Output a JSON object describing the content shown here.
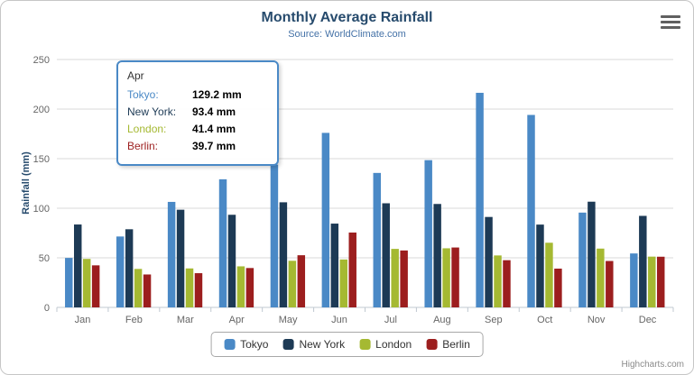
{
  "header": {
    "title": "Monthly Average Rainfall",
    "subtitle": "Source: WorldClimate.com"
  },
  "credits": "Highcharts.com",
  "chart_data": {
    "type": "bar",
    "title": "Monthly Average Rainfall",
    "subtitle": "Source: WorldClimate.com",
    "categories": [
      "Jan",
      "Feb",
      "Mar",
      "Apr",
      "May",
      "Jun",
      "Jul",
      "Aug",
      "Sep",
      "Oct",
      "Nov",
      "Dec"
    ],
    "series": [
      {
        "name": "Tokyo",
        "color": "#4a89c6",
        "values": [
          49.9,
          71.5,
          106.4,
          129.2,
          144.0,
          176.0,
          135.6,
          148.5,
          216.4,
          194.1,
          95.6,
          54.4
        ]
      },
      {
        "name": "New York",
        "color": "#1d3a55",
        "values": [
          83.6,
          78.8,
          98.5,
          93.4,
          106.0,
          84.5,
          105.0,
          104.3,
          91.2,
          83.5,
          106.6,
          92.3
        ]
      },
      {
        "name": "London",
        "color": "#a5b932",
        "values": [
          48.9,
          38.8,
          39.3,
          41.4,
          47.0,
          48.3,
          59.0,
          59.6,
          52.4,
          65.2,
          59.3,
          51.2
        ]
      },
      {
        "name": "Berlin",
        "color": "#9c1e1e",
        "values": [
          42.4,
          33.2,
          34.5,
          39.7,
          52.6,
          75.5,
          57.4,
          60.4,
          47.6,
          39.1,
          46.8,
          51.1
        ]
      }
    ],
    "xlabel": "",
    "ylabel": "Rainfall (mm)",
    "ylim": [
      0,
      250
    ],
    "yticks": [
      0,
      50,
      100,
      150,
      200,
      250
    ],
    "grid": true,
    "legend_position": "bottom"
  },
  "tooltip": {
    "header": "Apr",
    "rows": [
      {
        "label": "Tokyo:",
        "value": "129.2 mm"
      },
      {
        "label": "New York:",
        "value": "93.4 mm"
      },
      {
        "label": "London:",
        "value": "41.4 mm"
      },
      {
        "label": "Berlin:",
        "value": "39.7 mm"
      }
    ]
  }
}
